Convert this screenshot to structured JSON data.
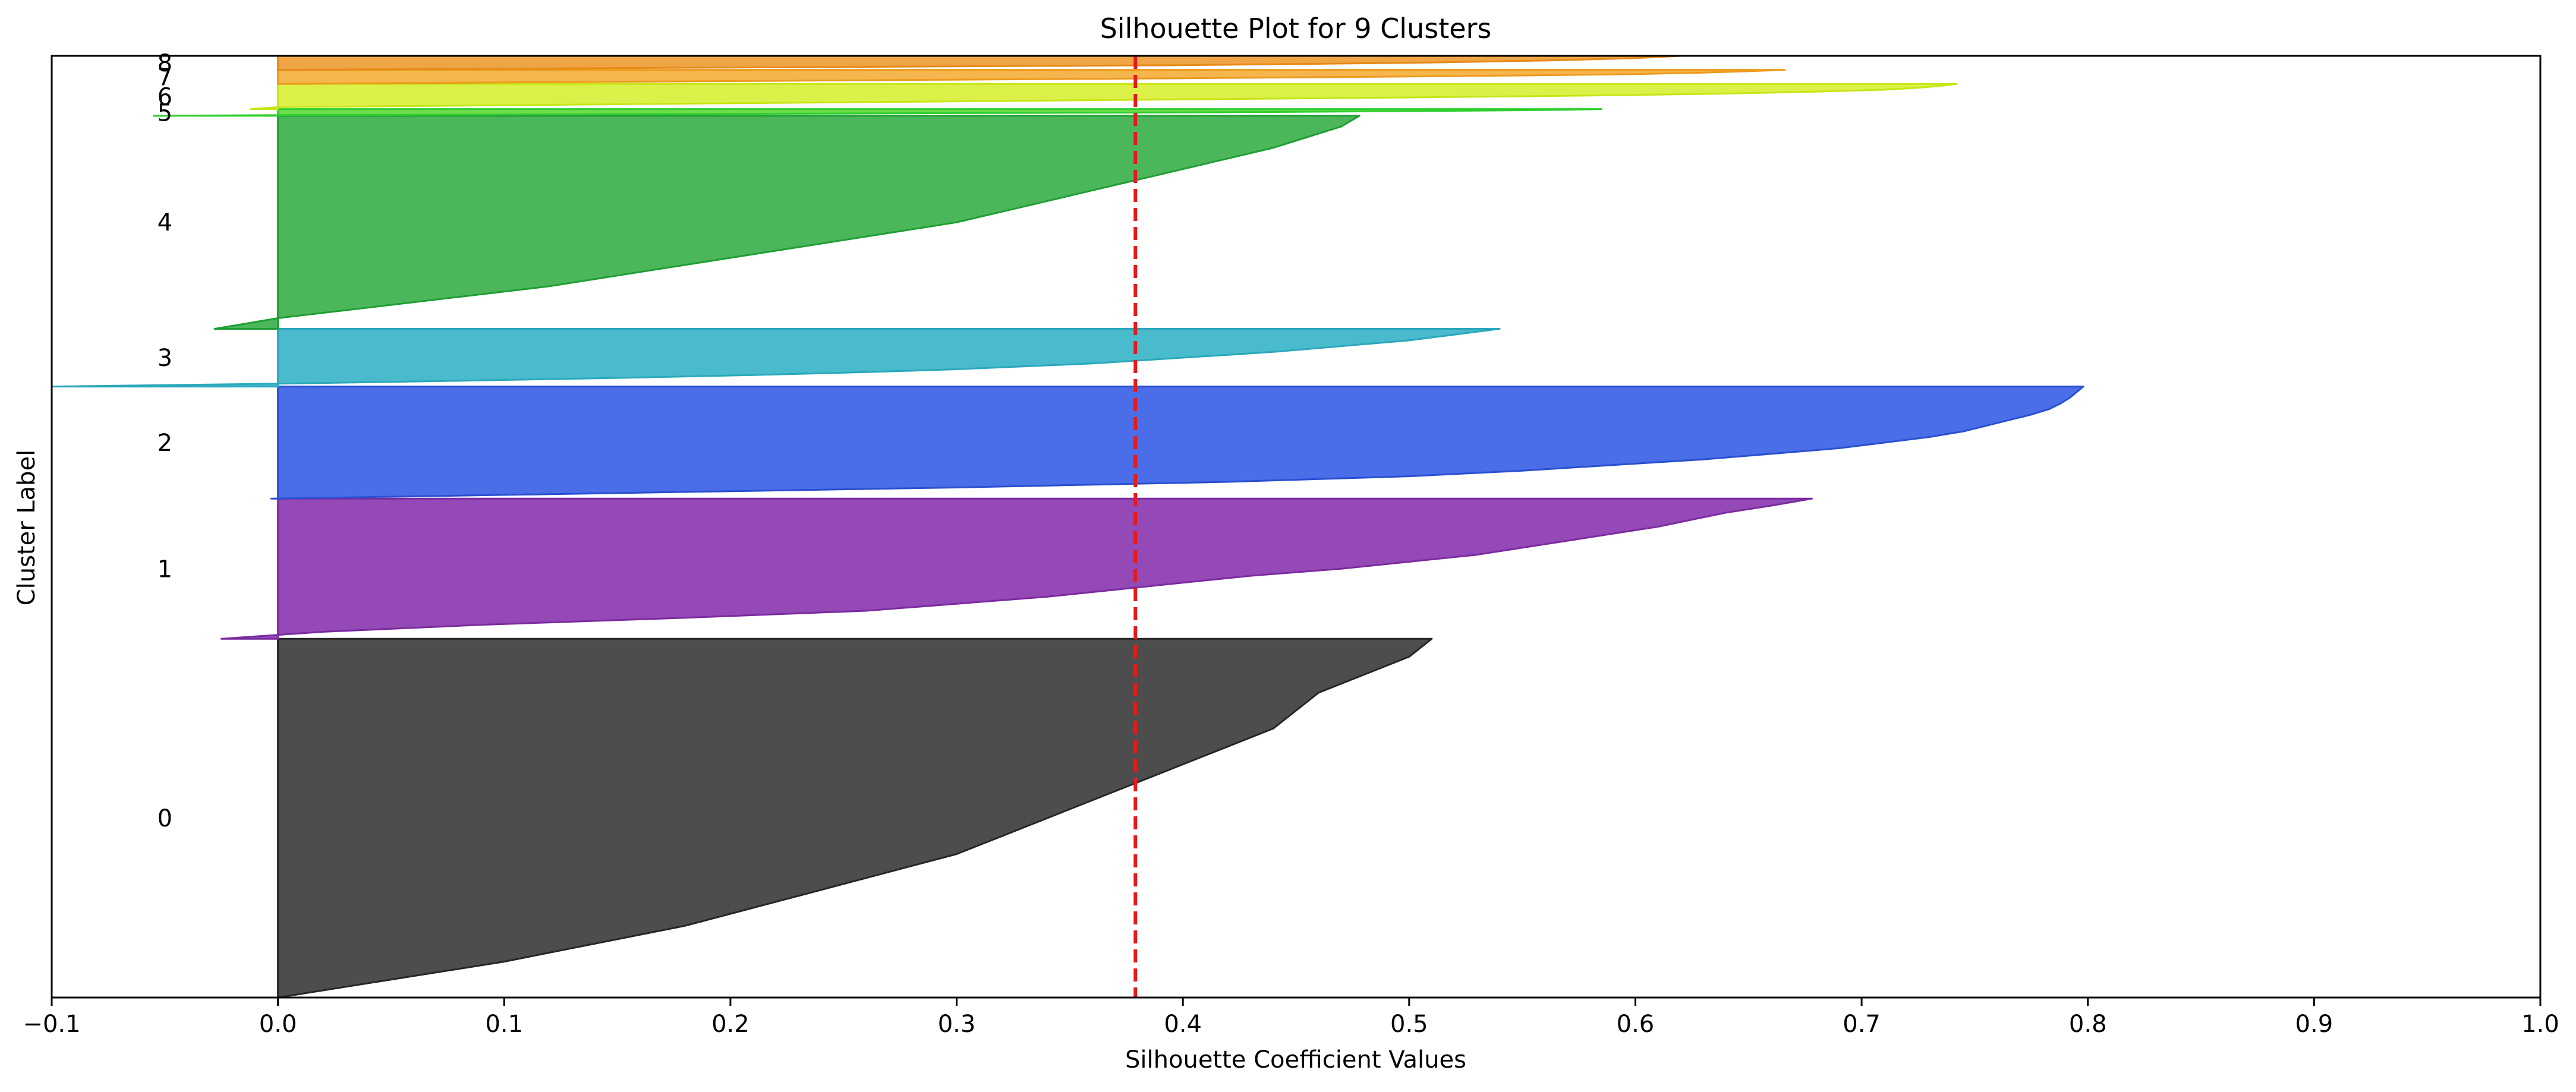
{
  "chart_data": {
    "type": "area",
    "title": "Silhouette Plot for 9 Clusters",
    "xlabel": "Silhouette Coefficient Values",
    "ylabel": "Cluster Label",
    "xlim": [
      -0.1,
      1.0
    ],
    "xticks": [
      "−0.1",
      "0.0",
      "0.1",
      "0.2",
      "0.3",
      "0.4",
      "0.5",
      "0.6",
      "0.7",
      "0.8",
      "0.9",
      "1.0"
    ],
    "xtick_values": [
      -0.1,
      0.0,
      0.1,
      0.2,
      0.3,
      0.4,
      0.5,
      0.6,
      0.7,
      0.8,
      0.9,
      1.0
    ],
    "ylim": [
      0,
      1680
    ],
    "grid": false,
    "average_silhouette": 0.379,
    "average_line_color": "#e41a1c",
    "clusters": [
      {
        "label": "0",
        "y_lower": 0,
        "size": 640,
        "color": "#4d4d4d",
        "stroke": "#262626",
        "min": 0.0,
        "max": 0.51,
        "shape": [
          0.0,
          0.05,
          0.1,
          0.14,
          0.18,
          0.21,
          0.24,
          0.27,
          0.3,
          0.32,
          0.34,
          0.36,
          0.38,
          0.4,
          0.42,
          0.44,
          0.45,
          0.46,
          0.48,
          0.5,
          0.51
        ]
      },
      {
        "label": "1",
        "y_lower": 640,
        "size": 250,
        "color": "#9449b6",
        "stroke": "#7a2ba0",
        "min": -0.025,
        "max": 0.678,
        "shape": [
          -0.025,
          0.02,
          0.09,
          0.18,
          0.26,
          0.3,
          0.34,
          0.37,
          0.4,
          0.43,
          0.47,
          0.5,
          0.53,
          0.55,
          0.57,
          0.59,
          0.61,
          0.625,
          0.64,
          0.66,
          0.678
        ]
      },
      {
        "label": "2",
        "y_lower": 890,
        "size": 200,
        "color": "#4a6ee8",
        "stroke": "#2a4fd0",
        "min": -0.003,
        "max": 0.798,
        "shape": [
          -0.003,
          0.15,
          0.3,
          0.42,
          0.5,
          0.55,
          0.59,
          0.63,
          0.66,
          0.69,
          0.71,
          0.73,
          0.745,
          0.755,
          0.765,
          0.775,
          0.783,
          0.788,
          0.792,
          0.795,
          0.798
        ]
      },
      {
        "label": "3",
        "y_lower": 1090,
        "size": 103,
        "color": "#4abbcc",
        "stroke": "#2aa8bb",
        "min": -0.1,
        "max": 0.54,
        "shape": [
          -0.1,
          0.0,
          0.08,
          0.15,
          0.21,
          0.26,
          0.3,
          0.33,
          0.36,
          0.38,
          0.4,
          0.42,
          0.44,
          0.455,
          0.47,
          0.485,
          0.5,
          0.51,
          0.52,
          0.53,
          0.54
        ]
      },
      {
        "label": "4",
        "y_lower": 1193,
        "size": 380,
        "color": "#4cb75a",
        "stroke": "#1f9e34",
        "min": -0.028,
        "max": 0.478,
        "shape": [
          -0.028,
          0.0,
          0.04,
          0.08,
          0.12,
          0.15,
          0.18,
          0.21,
          0.24,
          0.27,
          0.3,
          0.32,
          0.34,
          0.36,
          0.38,
          0.4,
          0.42,
          0.44,
          0.455,
          0.47,
          0.478
        ]
      },
      {
        "label": "5",
        "y_lower": 1573,
        "size": 12,
        "color": "#6fdc4b",
        "stroke": "#2ecf2e",
        "min": -0.055,
        "max": 0.585,
        "shape": [
          -0.055,
          0.0,
          0.1,
          0.2,
          0.3,
          0.4,
          0.45,
          0.5,
          0.54,
          0.57,
          0.585
        ]
      },
      {
        "label": "6",
        "y_lower": 1585,
        "size": 45,
        "color": "#dcf04a",
        "stroke": "#c6e614",
        "min": -0.012,
        "max": 0.742,
        "shape": [
          -0.012,
          0.0,
          0.1,
          0.2,
          0.3,
          0.4,
          0.5,
          0.58,
          0.64,
          0.68,
          0.71,
          0.725,
          0.735,
          0.742
        ]
      },
      {
        "label": "7",
        "y_lower": 1630,
        "size": 25,
        "color": "#f5b64e",
        "stroke": "#ee9a1c",
        "min": 0.0,
        "max": 0.666,
        "shape": [
          0.0,
          0.1,
          0.2,
          0.3,
          0.4,
          0.48,
          0.55,
          0.6,
          0.63,
          0.65,
          0.666
        ]
      },
      {
        "label": "8",
        "y_lower": 1655,
        "size": 25,
        "color": "#f0a545",
        "stroke": "#e58a18",
        "min": 0.0,
        "max": 0.62,
        "shape": [
          0.0,
          0.2,
          0.4,
          0.5,
          0.56,
          0.6,
          0.62
        ]
      }
    ]
  }
}
